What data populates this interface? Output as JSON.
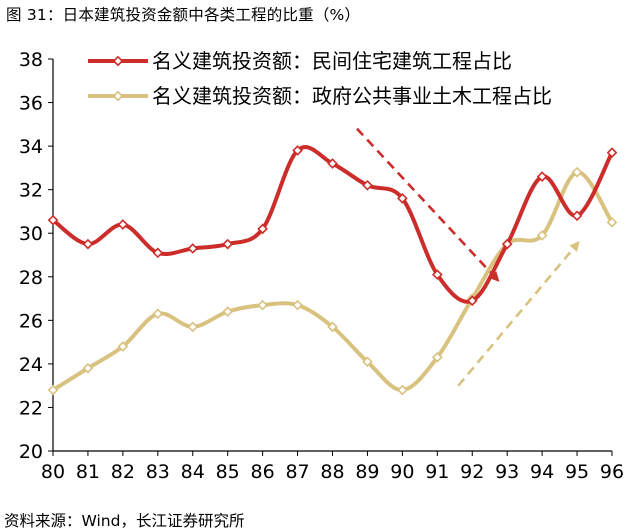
{
  "figure": {
    "title": "图 31：日本建筑投资金额中各类工程的比重（%）",
    "source": "资料来源：Wind，长江证券研究所"
  },
  "colors": {
    "series1": "#cc2d2a",
    "series2": "#d9c27f"
  },
  "chart_data": {
    "type": "line",
    "x": [
      "80",
      "81",
      "82",
      "83",
      "84",
      "85",
      "86",
      "87",
      "88",
      "89",
      "90",
      "91",
      "92",
      "93",
      "94",
      "95",
      "96"
    ],
    "ylim": [
      20,
      38
    ],
    "yticks": [
      "20",
      "22",
      "24",
      "26",
      "28",
      "30",
      "32",
      "34",
      "36",
      "38"
    ],
    "grid": false,
    "legend_position": "top-left",
    "series": [
      {
        "name": "名义建筑投资额：民间住宅建筑工程占比",
        "values": [
          30.6,
          29.5,
          30.4,
          29.1,
          29.3,
          29.5,
          30.2,
          33.8,
          33.2,
          32.2,
          31.6,
          28.1,
          26.9,
          29.5,
          32.6,
          30.8,
          33.7
        ]
      },
      {
        "name": "名义建筑投资额：政府公共事业土木工程占比",
        "values": [
          22.8,
          23.8,
          24.8,
          26.3,
          25.7,
          26.4,
          26.7,
          26.7,
          25.7,
          24.1,
          22.8,
          24.3,
          27.0,
          29.5,
          29.9,
          32.8,
          30.5
        ]
      }
    ],
    "annotations": [
      {
        "type": "trend-arrow",
        "series": 0,
        "direction": "down",
        "from": [
          88.7,
          34.8
        ],
        "to": [
          92.7,
          27.9
        ]
      },
      {
        "type": "trend-arrow",
        "series": 1,
        "direction": "up",
        "from": [
          91.6,
          23.0
        ],
        "to": [
          95.0,
          29.5
        ]
      }
    ]
  }
}
